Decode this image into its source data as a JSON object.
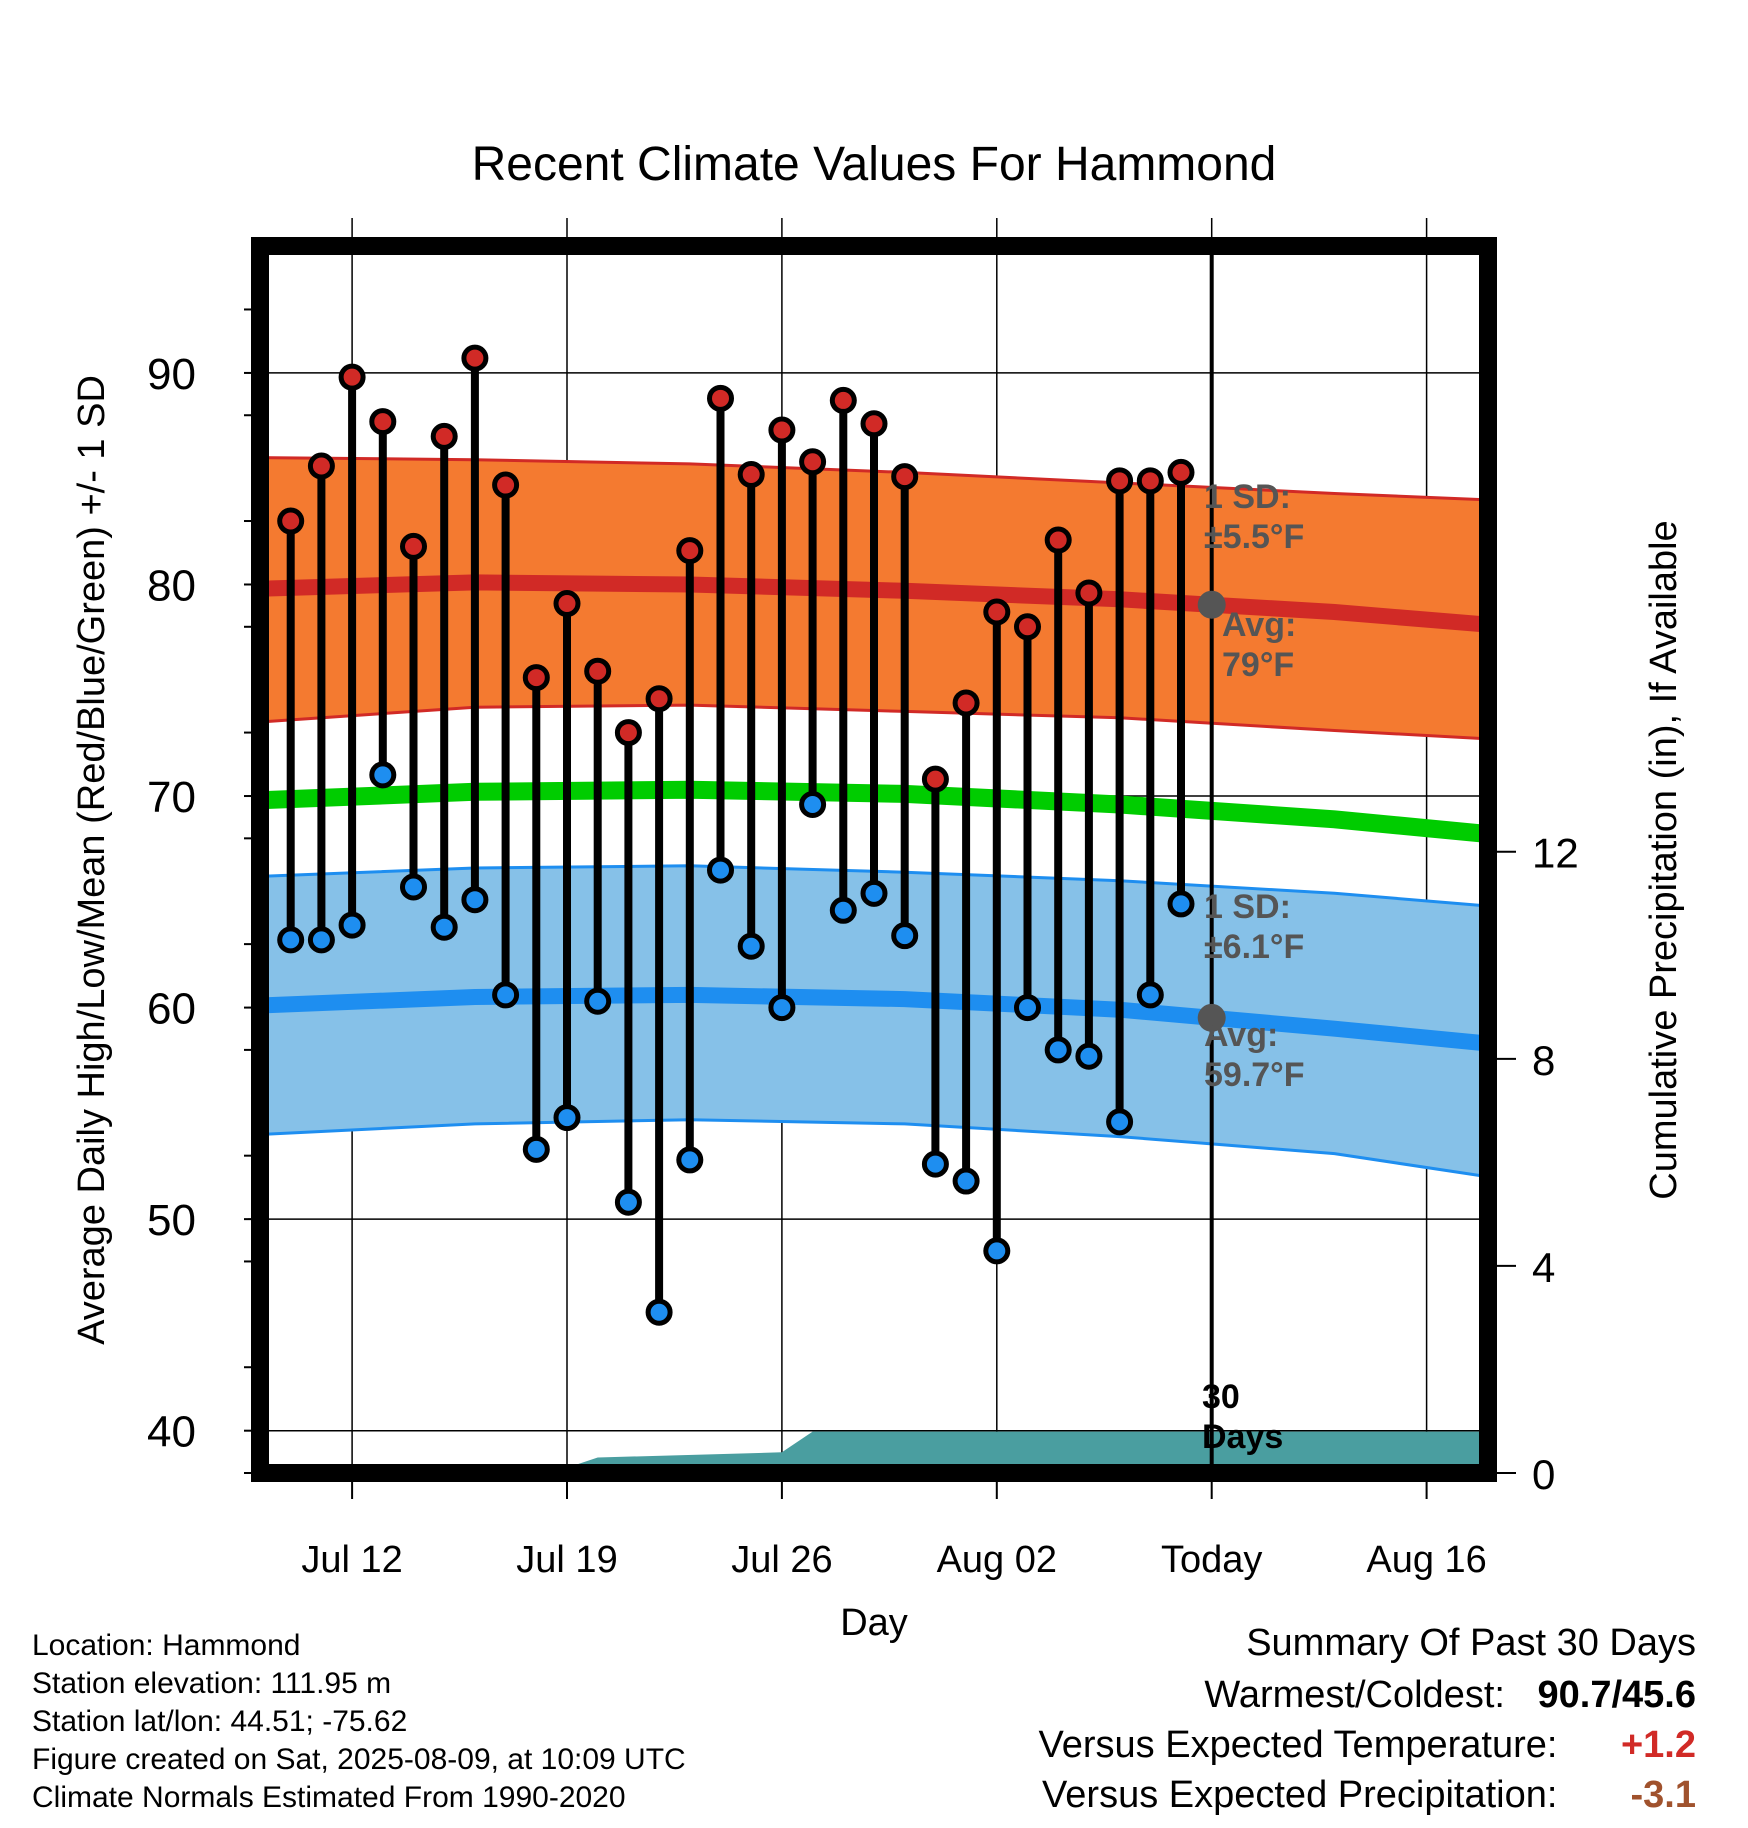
{
  "chart_data": {
    "type": "line",
    "title": "Recent Climate Values For Hammond",
    "xlabel": "Day",
    "ylabel": "Average Daily High/Low/Mean (Red/Blue/Green) +/- 1 SD",
    "ylabel_right": "Cumulative Precipitation (in), If Available",
    "x_ticks": [
      "Jul 12",
      "Jul 19",
      "Jul 26",
      "Aug 02",
      "Today",
      "Aug 16"
    ],
    "y_ticks": [
      40,
      50,
      60,
      70,
      80,
      90
    ],
    "y2_ticks": [
      0,
      4,
      8,
      12
    ],
    "ylim": [
      38.0,
      96.0
    ],
    "y2lim": [
      0,
      23.7
    ],
    "xlim": [
      "2025-07-09",
      "2025-08-18"
    ],
    "today": "2025-08-09",
    "grid": true,
    "daily": {
      "dates": [
        "2025-07-10",
        "2025-07-11",
        "2025-07-12",
        "2025-07-13",
        "2025-07-14",
        "2025-07-15",
        "2025-07-16",
        "2025-07-17",
        "2025-07-18",
        "2025-07-19",
        "2025-07-20",
        "2025-07-21",
        "2025-07-22",
        "2025-07-23",
        "2025-07-24",
        "2025-07-25",
        "2025-07-26",
        "2025-07-27",
        "2025-07-28",
        "2025-07-29",
        "2025-07-30",
        "2025-07-31",
        "2025-08-01",
        "2025-08-02",
        "2025-08-03",
        "2025-08-04",
        "2025-08-05",
        "2025-08-06",
        "2025-08-07",
        "2025-08-08"
      ],
      "highs": [
        83.0,
        85.6,
        89.8,
        87.7,
        81.8,
        87.0,
        90.7,
        84.7,
        75.6,
        79.1,
        75.9,
        73.0,
        74.6,
        81.6,
        88.8,
        85.2,
        87.3,
        85.8,
        88.7,
        87.6,
        85.1,
        70.8,
        74.4,
        78.7,
        78.0,
        82.1,
        79.6,
        84.9,
        84.9,
        85.3
      ],
      "lows": [
        63.2,
        63.2,
        63.9,
        71.0,
        65.7,
        63.8,
        65.1,
        60.6,
        53.3,
        54.8,
        60.3,
        50.8,
        45.6,
        52.8,
        66.5,
        62.9,
        60.0,
        69.6,
        64.6,
        65.4,
        63.4,
        52.6,
        51.8,
        48.5,
        60.0,
        58.0,
        57.7,
        54.6,
        60.6,
        64.9
      ]
    },
    "normals": {
      "dates": [
        "2025-07-09",
        "2025-07-16",
        "2025-07-23",
        "2025-07-30",
        "2025-08-06",
        "2025-08-13",
        "2025-08-18"
      ],
      "high_avg": [
        79.8,
        80.1,
        80.0,
        79.7,
        79.3,
        78.7,
        78.1
      ],
      "high_sd_upper": [
        86.0,
        85.9,
        85.7,
        85.3,
        84.8,
        84.3,
        84.0
      ],
      "high_sd_lower": [
        73.5,
        74.2,
        74.3,
        74.0,
        73.7,
        73.1,
        72.7
      ],
      "mean_avg": [
        69.8,
        70.2,
        70.3,
        70.1,
        69.6,
        68.9,
        68.2
      ],
      "low_avg": [
        60.1,
        60.5,
        60.6,
        60.4,
        59.9,
        59.0,
        58.3
      ],
      "low_sd_upper": [
        66.2,
        66.6,
        66.7,
        66.4,
        66.0,
        65.4,
        64.8
      ],
      "low_sd_lower": [
        54.0,
        54.5,
        54.7,
        54.5,
        53.9,
        53.1,
        52.0
      ]
    },
    "precip": {
      "dates": [
        "2025-07-09",
        "2025-07-17",
        "2025-07-19",
        "2025-07-20",
        "2025-07-26",
        "2025-07-27",
        "2025-08-18"
      ],
      "cumulative": [
        0.0,
        0.0,
        0.1,
        0.3,
        0.4,
        0.8,
        0.8
      ]
    },
    "annotations": {
      "high_sd": {
        "line1": "1 SD:",
        "line2": "±5.5°F"
      },
      "high_avg": {
        "line1": "Avg:",
        "line2": "79°F"
      },
      "low_sd": {
        "line1": "1 SD:",
        "line2": "±6.1°F"
      },
      "low_avg": {
        "line1": "Avg:",
        "line2": "59.7°F"
      },
      "days": {
        "line1": "30",
        "line2": "Days"
      }
    },
    "colors": {
      "high_band": "#f47a30",
      "high_line": "#d12a26",
      "low_band": "#86c1e8",
      "low_line": "#1e8ef0",
      "mean_line": "#00cc00",
      "precip": "#4a9ea0",
      "high_marker": "#d12a26",
      "low_marker": "#1e8ef0",
      "today_marker": "#555555"
    }
  },
  "info": {
    "location": "Location: Hammond",
    "elevation": "Station elevation: 111.95 m",
    "latlon": "Station lat/lon: 44.51; -75.62",
    "created": "Figure created on Sat, 2025-08-09, at 10:09 UTC",
    "normals": "Climate Normals Estimated From 1990-2020"
  },
  "summary": {
    "title": "Summary Of Past 30 Days",
    "warmest_coldest_label": "Warmest/Coldest:",
    "warmest_coldest_value": "90.7/45.6",
    "temp_label": "Versus Expected Temperature:",
    "temp_value": "+1.2",
    "temp_color": "#d12a26",
    "precip_label": "Versus Expected Precipitation:",
    "precip_value": "-3.1",
    "precip_color": "#a0522d"
  }
}
